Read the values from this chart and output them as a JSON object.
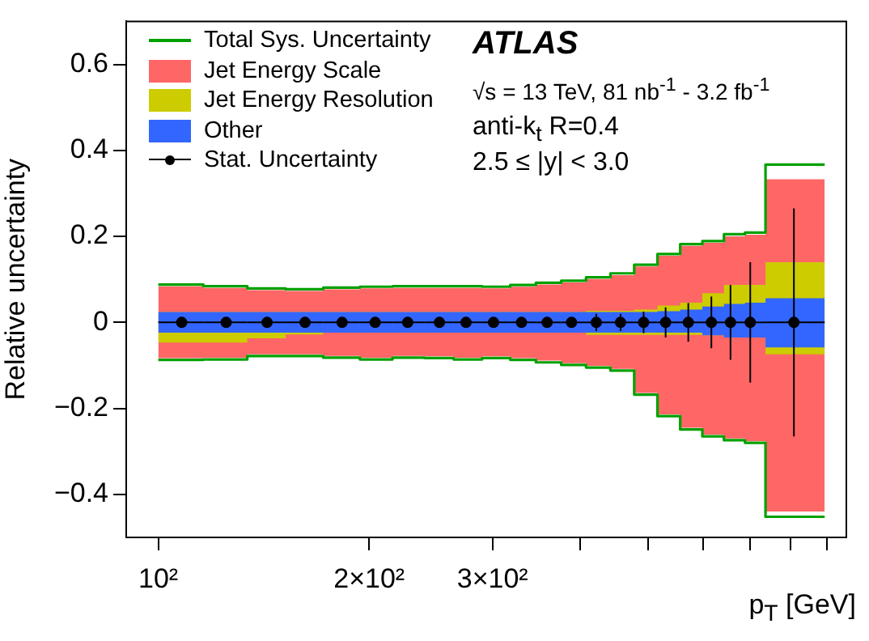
{
  "chart_data": {
    "type": "area",
    "xlabel": "p$_{T}$ [GeV]",
    "ylabel": "Relative uncertainty",
    "log": "x",
    "xlim": [
      90,
      960
    ],
    "xticks": [
      {
        "value": 100,
        "label": "10²"
      },
      {
        "value": 200,
        "label": "2×10²"
      },
      {
        "value": 300,
        "label": "3×10²"
      },
      {
        "value": 400,
        "label": null
      },
      {
        "value": 500,
        "label": null
      },
      {
        "value": 600,
        "label": null
      },
      {
        "value": 700,
        "label": null
      },
      {
        "value": 800,
        "label": null
      },
      {
        "value": 900,
        "label": null
      }
    ],
    "ylim": [
      -0.5,
      0.7
    ],
    "yticks": [
      -0.4,
      -0.2,
      0,
      0.2,
      0.4,
      0.6
    ],
    "legend": "top left",
    "annotations": [
      "ATLAS",
      "√s = 13 TeV, 81 nb$^{-1}$ - 3.2 fb$^{-1}$",
      "anti-k$_{t}$  R=0.4",
      "2.5 ≤ |y| < 3.0"
    ],
    "series": [
      {
        "name": "Total Sys. Uncertainty",
        "type": "line",
        "color": "#00a000",
        "x": [
          100,
          116,
          116,
          134,
          134,
          152,
          152,
          172,
          172,
          194,
          194,
          216,
          216,
          240,
          240,
          264,
          264,
          290,
          290,
          318,
          318,
          346,
          346,
          376,
          376,
          408,
          408,
          442,
          442,
          478,
          478,
          516,
          516,
          556,
          556,
          598,
          598,
          642,
          642,
          688,
          688,
          736,
          736,
          894
        ],
        "values": [
          0.088,
          0.088,
          0.084,
          0.084,
          0.079,
          0.079,
          0.077,
          0.077,
          0.081,
          0.081,
          0.083,
          0.083,
          0.084,
          0.084,
          0.084,
          0.084,
          0.084,
          0.084,
          0.083,
          0.083,
          0.087,
          0.087,
          0.092,
          0.092,
          0.097,
          0.097,
          0.105,
          0.105,
          0.114,
          0.114,
          0.134,
          0.134,
          0.159,
          0.159,
          0.182,
          0.182,
          0.189,
          0.189,
          0.205,
          0.205,
          0.209,
          0.209,
          0.367,
          0.367
        ]
      },
      {
        "type": "line",
        "color": "#00a000",
        "x": [
          100,
          116,
          116,
          134,
          134,
          152,
          152,
          172,
          172,
          194,
          194,
          216,
          216,
          240,
          240,
          264,
          264,
          290,
          290,
          318,
          318,
          346,
          346,
          376,
          376,
          408,
          408,
          442,
          442,
          478,
          478,
          516,
          516,
          556,
          556,
          598,
          598,
          642,
          642,
          688,
          688,
          736,
          736,
          894
        ],
        "values": [
          -0.087,
          -0.087,
          -0.086,
          -0.086,
          -0.078,
          -0.078,
          -0.078,
          -0.078,
          -0.082,
          -0.082,
          -0.086,
          -0.086,
          -0.082,
          -0.082,
          -0.083,
          -0.083,
          -0.086,
          -0.086,
          -0.083,
          -0.083,
          -0.087,
          -0.087,
          -0.093,
          -0.093,
          -0.099,
          -0.099,
          -0.105,
          -0.105,
          -0.112,
          -0.112,
          -0.168,
          -0.168,
          -0.218,
          -0.218,
          -0.249,
          -0.249,
          -0.265,
          -0.265,
          -0.274,
          -0.274,
          -0.28,
          -0.28,
          -0.452,
          -0.452
        ]
      },
      {
        "name": "Jet Energy Scale",
        "color": "#ff6666",
        "x": [
          100,
          116,
          116,
          134,
          134,
          152,
          152,
          172,
          172,
          194,
          194,
          216,
          216,
          240,
          240,
          264,
          264,
          290,
          290,
          318,
          318,
          346,
          346,
          376,
          376,
          408,
          408,
          442,
          442,
          478,
          478,
          516,
          516,
          556,
          556,
          598,
          598,
          642,
          642,
          688,
          688,
          736,
          736,
          894
        ],
        "values": [
          0.084,
          0.084,
          0.08,
          0.08,
          0.075,
          0.075,
          0.073,
          0.073,
          0.077,
          0.077,
          0.079,
          0.079,
          0.08,
          0.08,
          0.08,
          0.08,
          0.08,
          0.08,
          0.079,
          0.079,
          0.083,
          0.083,
          0.088,
          0.088,
          0.093,
          0.093,
          0.101,
          0.101,
          0.11,
          0.11,
          0.13,
          0.13,
          0.155,
          0.155,
          0.178,
          0.178,
          0.185,
          0.185,
          0.2,
          0.2,
          0.204,
          0.204,
          0.333,
          0.333
        ]
      },
      {
        "color": "#ff6666",
        "x": [
          100,
          116,
          116,
          134,
          134,
          152,
          152,
          172,
          172,
          194,
          194,
          216,
          216,
          240,
          240,
          264,
          264,
          290,
          290,
          318,
          318,
          346,
          346,
          376,
          376,
          408,
          408,
          442,
          442,
          478,
          478,
          516,
          516,
          556,
          556,
          598,
          598,
          642,
          642,
          688,
          688,
          736,
          736,
          894
        ],
        "values": [
          -0.083,
          -0.083,
          -0.082,
          -0.082,
          -0.074,
          -0.074,
          -0.074,
          -0.074,
          -0.078,
          -0.078,
          -0.082,
          -0.082,
          -0.078,
          -0.078,
          -0.079,
          -0.079,
          -0.082,
          -0.082,
          -0.079,
          -0.079,
          -0.083,
          -0.083,
          -0.089,
          -0.089,
          -0.095,
          -0.095,
          -0.101,
          -0.101,
          -0.108,
          -0.108,
          -0.164,
          -0.164,
          -0.214,
          -0.214,
          -0.245,
          -0.245,
          -0.261,
          -0.261,
          -0.27,
          -0.27,
          -0.276,
          -0.276,
          -0.44,
          -0.44
        ]
      },
      {
        "name": "Jet Energy Resolution",
        "color": "#cccc00",
        "x": [
          100,
          116,
          116,
          134,
          134,
          152,
          152,
          172,
          172,
          194,
          194,
          216,
          216,
          240,
          240,
          264,
          264,
          290,
          290,
          318,
          318,
          346,
          346,
          376,
          376,
          408,
          408,
          442,
          442,
          478,
          478,
          516,
          516,
          556,
          556,
          598,
          598,
          642,
          642,
          688,
          688,
          736,
          736,
          894
        ],
        "values": [
          0.024,
          0.024,
          0.024,
          0.024,
          0.024,
          0.024,
          0.024,
          0.024,
          0.024,
          0.024,
          0.024,
          0.024,
          0.024,
          0.024,
          0.024,
          0.024,
          0.024,
          0.024,
          0.024,
          0.024,
          0.024,
          0.024,
          0.024,
          0.024,
          0.024,
          0.024,
          0.027,
          0.027,
          0.027,
          0.027,
          0.03,
          0.03,
          0.039,
          0.039,
          0.046,
          0.046,
          0.068,
          0.068,
          0.087,
          0.087,
          0.087,
          0.087,
          0.14,
          0.14
        ]
      },
      {
        "color": "#cccc00",
        "x": [
          100,
          116,
          116,
          134,
          134,
          152,
          152,
          172,
          172,
          194,
          194,
          216,
          216,
          240,
          240,
          264,
          264,
          290,
          290,
          318,
          318,
          346,
          346,
          376,
          376,
          408,
          408,
          442,
          442,
          478,
          478,
          516,
          516,
          556,
          556,
          598,
          598,
          642,
          642,
          688,
          688,
          736,
          736,
          894
        ],
        "values": [
          -0.047,
          -0.047,
          -0.047,
          -0.047,
          -0.037,
          -0.037,
          -0.028,
          -0.028,
          -0.024,
          -0.024,
          -0.024,
          -0.024,
          -0.024,
          -0.024,
          -0.024,
          -0.024,
          -0.024,
          -0.024,
          -0.024,
          -0.024,
          -0.024,
          -0.024,
          -0.024,
          -0.024,
          -0.024,
          -0.024,
          -0.029,
          -0.029,
          -0.029,
          -0.029,
          -0.029,
          -0.029,
          -0.029,
          -0.029,
          -0.029,
          -0.029,
          -0.03,
          -0.03,
          -0.035,
          -0.035,
          -0.035,
          -0.035,
          -0.074,
          -0.074
        ]
      },
      {
        "name": "Other",
        "color": "#3366ff",
        "x": [
          100,
          116,
          116,
          134,
          134,
          152,
          152,
          172,
          172,
          194,
          194,
          216,
          216,
          240,
          240,
          264,
          264,
          290,
          290,
          318,
          318,
          346,
          346,
          376,
          376,
          408,
          408,
          442,
          442,
          478,
          478,
          516,
          516,
          556,
          556,
          598,
          598,
          642,
          642,
          688,
          688,
          736,
          736,
          894
        ],
        "values": [
          0.024,
          0.024,
          0.024,
          0.024,
          0.024,
          0.024,
          0.024,
          0.024,
          0.024,
          0.024,
          0.024,
          0.024,
          0.024,
          0.024,
          0.024,
          0.024,
          0.024,
          0.024,
          0.024,
          0.024,
          0.024,
          0.024,
          0.024,
          0.024,
          0.024,
          0.024,
          0.024,
          0.024,
          0.024,
          0.024,
          0.024,
          0.024,
          0.026,
          0.026,
          0.03,
          0.03,
          0.037,
          0.037,
          0.043,
          0.043,
          0.046,
          0.046,
          0.056,
          0.056
        ]
      },
      {
        "color": "#3366ff",
        "x": [
          100,
          116,
          116,
          134,
          134,
          152,
          152,
          172,
          172,
          194,
          194,
          216,
          216,
          240,
          240,
          264,
          264,
          290,
          290,
          318,
          318,
          346,
          346,
          376,
          376,
          408,
          408,
          442,
          442,
          478,
          478,
          516,
          516,
          556,
          556,
          598,
          598,
          642,
          642,
          688,
          688,
          736,
          736,
          894
        ],
        "values": [
          -0.024,
          -0.024,
          -0.024,
          -0.024,
          -0.024,
          -0.024,
          -0.024,
          -0.024,
          -0.024,
          -0.024,
          -0.024,
          -0.024,
          -0.024,
          -0.024,
          -0.024,
          -0.024,
          -0.024,
          -0.024,
          -0.024,
          -0.024,
          -0.024,
          -0.024,
          -0.024,
          -0.024,
          -0.024,
          -0.024,
          -0.024,
          -0.024,
          -0.024,
          -0.024,
          -0.024,
          -0.024,
          -0.024,
          -0.024,
          -0.024,
          -0.024,
          -0.03,
          -0.03,
          -0.035,
          -0.035,
          -0.035,
          -0.035,
          -0.058,
          -0.058
        ]
      },
      {
        "name": "Stat. Uncertainty",
        "type": "scatter",
        "color": "#000000",
        "marker": "circle",
        "x": [
          108,
          125,
          143,
          162,
          183,
          204,
          227,
          252,
          275,
          301,
          330,
          359,
          389,
          422,
          457,
          493,
          530,
          571,
          616,
          656,
          700,
          808
        ],
        "values": [
          0,
          0,
          0,
          0,
          0,
          0,
          0,
          0,
          0,
          0,
          0,
          0,
          0,
          0,
          0,
          0,
          0,
          0,
          0,
          0,
          0,
          0
        ],
        "errors": [
          null,
          null,
          null,
          null,
          null,
          null,
          null,
          0.005,
          0.005,
          0.005,
          0.005,
          0.005,
          0.01,
          0.02,
          0.02,
          0.025,
          0.035,
          0.045,
          0.06,
          0.087,
          0.14,
          0.265
        ],
        "xerrors": [
          [
            100,
            116
          ],
          [
            116,
            134
          ],
          [
            134,
            152
          ],
          [
            152,
            172
          ],
          [
            172,
            194
          ],
          [
            194,
            216
          ],
          [
            216,
            240
          ],
          [
            240,
            264
          ],
          [
            264,
            290
          ],
          [
            290,
            318
          ],
          [
            318,
            346
          ],
          [
            346,
            376
          ],
          [
            376,
            408
          ],
          [
            408,
            442
          ],
          [
            442,
            478
          ],
          [
            478,
            516
          ],
          [
            516,
            556
          ],
          [
            556,
            598
          ],
          [
            598,
            642
          ],
          [
            642,
            688
          ],
          [
            688,
            736
          ],
          [
            736,
            894
          ]
        ]
      }
    ]
  }
}
